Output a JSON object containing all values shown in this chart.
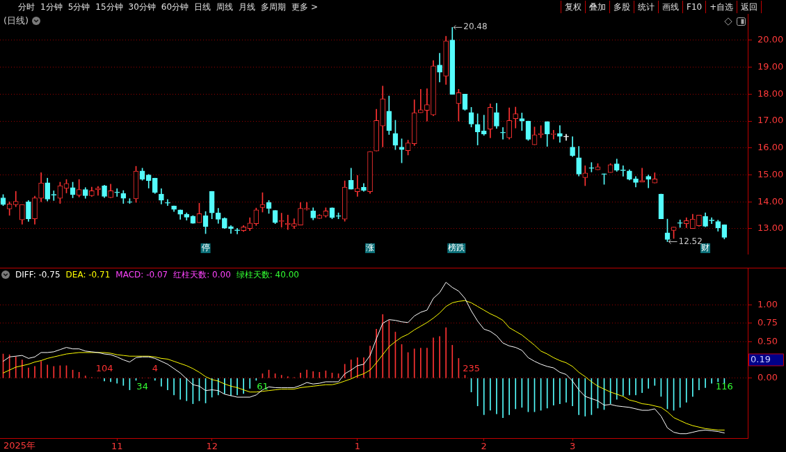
{
  "chart_data": [
    {
      "type": "other",
      "annotations": [
        "分时",
        "1分钟",
        "5分钟",
        "15分钟",
        "30分钟",
        "60分钟",
        "日线",
        "周线",
        "月线",
        "多周期",
        "更多 >"
      ]
    },
    {
      "type": "other",
      "annotations": [
        "复权",
        "叠加",
        "多股",
        "统计",
        "画线",
        "F10",
        "+自选",
        "返回"
      ]
    },
    {
      "type": "candlestick",
      "title": "(日线)",
      "tick_labels": "y",
      "grid": "y",
      "categories": [
        null,
        null,
        null,
        null,
        null,
        null,
        null,
        null,
        null,
        null,
        null,
        null,
        null,
        null,
        null,
        null,
        null,
        null,
        "11",
        null,
        null,
        null,
        null,
        null,
        null,
        null,
        null,
        null,
        null,
        null,
        null,
        null,
        null,
        "12",
        null,
        null,
        null,
        null,
        null,
        null,
        null,
        null,
        null,
        null,
        null,
        null,
        null,
        null,
        null,
        null,
        null,
        null,
        null,
        null,
        null,
        null,
        "1",
        null,
        null,
        null,
        null,
        null,
        null,
        null,
        null,
        null,
        null,
        null,
        null,
        null,
        null,
        null,
        null,
        null,
        null,
        null,
        "2",
        null,
        null,
        null,
        null,
        null,
        null,
        null,
        null,
        null,
        null,
        null,
        null,
        null,
        "3",
        null,
        null,
        null,
        null,
        null,
        null,
        null,
        null,
        null,
        null,
        null,
        null,
        null,
        null,
        null,
        null,
        null,
        null,
        null,
        null,
        null,
        null,
        null,
        null
      ],
      "ohlc": [
        [
          14.15,
          14.27,
          13.86,
          13.9
        ],
        [
          13.74,
          14.0,
          13.5,
          13.92
        ],
        [
          13.89,
          14.39,
          13.82,
          14.02
        ],
        [
          13.33,
          13.9,
          13.17,
          13.9
        ],
        [
          14.0,
          14.05,
          13.27,
          13.37
        ],
        [
          13.37,
          14.21,
          13.17,
          14.15
        ],
        [
          14.13,
          15.08,
          14.0,
          14.7
        ],
        [
          14.71,
          14.88,
          14.03,
          14.1
        ],
        [
          14.27,
          14.41,
          14.05,
          14.25
        ],
        [
          14.13,
          14.73,
          13.94,
          14.6
        ],
        [
          14.5,
          14.83,
          14.33,
          14.68
        ],
        [
          14.53,
          14.73,
          14.15,
          14.27
        ],
        [
          14.24,
          14.83,
          14.18,
          14.46
        ],
        [
          14.46,
          14.53,
          14.13,
          14.23
        ],
        [
          14.23,
          14.55,
          14.2,
          14.41
        ],
        [
          14.45,
          14.57,
          14.24,
          14.51
        ],
        [
          14.59,
          14.62,
          14.16,
          14.2
        ],
        [
          14.16,
          14.66,
          14.15,
          14.41
        ],
        [
          14.36,
          14.49,
          14.2,
          14.34
        ],
        [
          14.31,
          14.42,
          13.94,
          14.13
        ],
        [
          13.99,
          14.12,
          13.94,
          13.98
        ],
        [
          14.11,
          15.32,
          13.98,
          15.14
        ],
        [
          15.15,
          15.25,
          14.8,
          14.84
        ],
        [
          15.0,
          15.02,
          14.51,
          14.79
        ],
        [
          14.88,
          14.88,
          14.31,
          14.35
        ],
        [
          14.29,
          14.49,
          13.92,
          14.06
        ],
        [
          13.98,
          14.09,
          13.86,
          13.95
        ],
        [
          13.85,
          13.85,
          13.64,
          13.72
        ],
        [
          13.7,
          13.7,
          13.35,
          13.54
        ],
        [
          13.54,
          13.59,
          13.32,
          13.43
        ],
        [
          13.47,
          13.49,
          13.2,
          13.2
        ],
        [
          13.23,
          13.95,
          13.23,
          13.56
        ],
        [
          13.49,
          13.64,
          12.82,
          13.08
        ],
        [
          14.39,
          14.39,
          13.37,
          13.59
        ],
        [
          13.59,
          13.76,
          13.2,
          13.35
        ],
        [
          13.39,
          13.41,
          13.01,
          13.02
        ],
        [
          13.08,
          13.12,
          12.83,
          13.01
        ],
        [
          12.95,
          13.02,
          12.81,
          12.93
        ],
        [
          12.93,
          13.12,
          12.9,
          13.07
        ],
        [
          13.01,
          13.41,
          12.93,
          13.21
        ],
        [
          13.19,
          13.77,
          13.12,
          13.7
        ],
        [
          13.79,
          14.34,
          13.62,
          13.9
        ],
        [
          13.98,
          14.05,
          13.57,
          13.76
        ],
        [
          13.68,
          13.68,
          13.19,
          13.23
        ],
        [
          13.27,
          13.58,
          13.06,
          13.3
        ],
        [
          13.16,
          13.51,
          12.97,
          13.2
        ],
        [
          13.09,
          13.37,
          13.01,
          13.19
        ],
        [
          13.14,
          13.97,
          13.14,
          13.76
        ],
        [
          13.72,
          13.98,
          13.69,
          13.76
        ],
        [
          13.66,
          13.78,
          13.33,
          13.4
        ],
        [
          13.38,
          13.53,
          13.38,
          13.5
        ],
        [
          13.48,
          13.78,
          13.43,
          13.66
        ],
        [
          13.78,
          13.78,
          13.37,
          13.42
        ],
        [
          13.47,
          13.59,
          13.37,
          13.46
        ],
        [
          13.36,
          14.78,
          13.28,
          14.55
        ],
        [
          14.8,
          15.25,
          14.47,
          14.47
        ],
        [
          14.38,
          14.98,
          14.2,
          14.5
        ],
        [
          14.54,
          14.68,
          14.39,
          14.42
        ],
        [
          14.38,
          15.87,
          14.31,
          15.87
        ],
        [
          15.89,
          17.44,
          15.89,
          17.02
        ],
        [
          16.82,
          18.3,
          16.04,
          17.83
        ],
        [
          17.37,
          17.93,
          16.5,
          16.65
        ],
        [
          16.54,
          17.03,
          15.94,
          16.1
        ],
        [
          16.03,
          16.34,
          15.45,
          15.94
        ],
        [
          15.9,
          16.29,
          15.74,
          16.19
        ],
        [
          16.16,
          17.79,
          16.09,
          17.31
        ],
        [
          17.31,
          18.18,
          17.31,
          17.42
        ],
        [
          17.4,
          18.2,
          17.0,
          17.61
        ],
        [
          17.23,
          19.25,
          17.2,
          19.05
        ],
        [
          19.08,
          19.52,
          18.45,
          18.82
        ],
        [
          18.67,
          20.15,
          18.36,
          19.98
        ],
        [
          20.01,
          20.48,
          17.99,
          17.99
        ],
        [
          17.65,
          18.18,
          17.0,
          18.05
        ],
        [
          18.0,
          18.0,
          17.4,
          17.43
        ],
        [
          17.32,
          17.51,
          16.78,
          16.89
        ],
        [
          16.88,
          17.27,
          16.11,
          16.6
        ],
        [
          16.63,
          17.22,
          16.47,
          16.52
        ],
        [
          16.7,
          17.64,
          16.38,
          17.51
        ],
        [
          17.32,
          17.66,
          16.73,
          16.81
        ],
        [
          16.58,
          16.76,
          16.33,
          16.56
        ],
        [
          16.38,
          17.49,
          16.33,
          17.02
        ],
        [
          17.09,
          17.52,
          16.74,
          17.27
        ],
        [
          17.09,
          17.3,
          16.65,
          17.0
        ],
        [
          17.0,
          17.0,
          16.28,
          16.32
        ],
        [
          16.12,
          16.78,
          16.12,
          16.49
        ],
        [
          16.49,
          16.83,
          16.38,
          16.54
        ],
        [
          16.98,
          16.98,
          16.06,
          16.52
        ],
        [
          16.5,
          16.66,
          16.33,
          16.53
        ],
        [
          16.54,
          16.83,
          16.21,
          16.43
        ],
        [
          16.41,
          16.51,
          16.28,
          16.41
        ],
        [
          16.03,
          16.42,
          15.68,
          15.72
        ],
        [
          15.64,
          16.06,
          14.96,
          15.03
        ],
        [
          14.9,
          15.34,
          14.6,
          15.07
        ],
        [
          15.27,
          15.46,
          15.11,
          15.24
        ],
        [
          15.19,
          15.42,
          15.19,
          15.3
        ],
        [
          15.04,
          15.04,
          14.65,
          15.02
        ],
        [
          15.09,
          15.42,
          15.09,
          15.38
        ],
        [
          15.41,
          15.59,
          15.13,
          15.18
        ],
        [
          15.17,
          15.34,
          14.95,
          15.16
        ],
        [
          15.15,
          15.19,
          14.81,
          14.84
        ],
        [
          14.86,
          14.94,
          14.55,
          14.72
        ],
        [
          14.74,
          15.25,
          14.74,
          14.79
        ],
        [
          14.95,
          15.0,
          14.52,
          14.84
        ],
        [
          14.7,
          15.08,
          14.7,
          14.85
        ],
        [
          14.29,
          14.29,
          13.37,
          13.37
        ],
        [
          12.85,
          13.36,
          12.52,
          12.6
        ],
        [
          12.94,
          13.06,
          12.64,
          13.06
        ],
        [
          13.22,
          13.33,
          13.05,
          13.2
        ],
        [
          13.19,
          13.41,
          13.04,
          13.3
        ],
        [
          13.01,
          13.54,
          13.01,
          13.36
        ],
        [
          13.11,
          13.51,
          13.09,
          13.51
        ],
        [
          13.46,
          13.59,
          13.07,
          13.09
        ],
        [
          13.32,
          13.41,
          13.19,
          13.3
        ],
        [
          13.27,
          13.32,
          12.91,
          13.03
        ],
        [
          13.15,
          13.15,
          12.62,
          12.68
        ]
      ],
      "colors": [
        "#54fcfc",
        "#ff3232",
        "#ff3232",
        "#ff3232",
        "#54fcfc",
        "#ff3232",
        "#ff3232",
        "#54fcfc",
        "#54fcfc",
        "#ff3232",
        "#ff3232",
        "#54fcfc",
        "#ff3232",
        "#54fcfc",
        "#ff3232",
        "#ff3232",
        "#54fcfc",
        "#ff3232",
        "#54fcfc",
        "#54fcfc",
        "#54fcfc",
        "#ff3232",
        "#54fcfc",
        "#54fcfc",
        "#54fcfc",
        "#54fcfc",
        "#54fcfc",
        "#54fcfc",
        "#54fcfc",
        "#54fcfc",
        "#54fcfc",
        "#ff3232",
        "#54fcfc",
        "#54fcfc",
        "#54fcfc",
        "#54fcfc",
        "#54fcfc",
        "#54fcfc",
        "#ff3232",
        "#ff3232",
        "#ff3232",
        "#ff3232",
        "#54fcfc",
        "#54fcfc",
        "#ff3232",
        "#ff3232",
        "#ff3232",
        "#ff3232",
        "#ff3232",
        "#54fcfc",
        "#ff3232",
        "#ff3232",
        "#54fcfc",
        "#54fcfc",
        "#ff3232",
        "#54fcfc",
        "#ff3232",
        "#54fcfc",
        "#ff3232",
        "#ff3232",
        "#ff3232",
        "#54fcfc",
        "#54fcfc",
        "#54fcfc",
        "#ff3232",
        "#ff3232",
        "#ff3232",
        "#ff3232",
        "#ff3232",
        "#54fcfc",
        "#ff3232",
        "#54fcfc",
        "#ff3232",
        "#54fcfc",
        "#54fcfc",
        "#54fcfc",
        "#54fcfc",
        "#ff3232",
        "#54fcfc",
        "#54fcfc",
        "#ff3232",
        "#ff3232",
        "#54fcfc",
        "#54fcfc",
        "#ff3232",
        "#ff3232",
        "#54fcfc",
        "#ff3232",
        "#54fcfc",
        "#ffffff",
        "#54fcfc",
        "#54fcfc",
        "#ff3232",
        "#54fcfc",
        "#ff3232",
        "#54fcfc",
        "#ff3232",
        "#54fcfc",
        "#54fcfc",
        "#54fcfc",
        "#54fcfc",
        "#ff3232",
        "#54fcfc",
        "#ff3232",
        "#54fcfc",
        "#54fcfc",
        "#ff3232",
        "#54fcfc",
        "#ff3232",
        "#ff3232",
        "#ff3232",
        "#54fcfc",
        "#54fcfc",
        "#54fcfc",
        "#54fcfc"
      ],
      "value_labels": [
        null,
        null,
        null,
        null,
        null,
        null,
        null,
        null,
        null,
        null,
        null,
        null,
        null,
        null,
        null,
        null,
        null,
        null,
        null,
        null,
        null,
        null,
        null,
        null,
        null,
        null,
        null,
        null,
        null,
        null,
        null,
        null,
        "停",
        null,
        null,
        null,
        null,
        null,
        null,
        null,
        null,
        null,
        null,
        null,
        null,
        null,
        null,
        null,
        null,
        null,
        null,
        null,
        null,
        null,
        null,
        null,
        null,
        null,
        "涨",
        null,
        null,
        null,
        null,
        null,
        null,
        null,
        null,
        null,
        null,
        null,
        null,
        "榜跌",
        null,
        null,
        null,
        null,
        null,
        null,
        null,
        null,
        null,
        null,
        null,
        null,
        null,
        null,
        null,
        null,
        null,
        null,
        null,
        null,
        null,
        null,
        null,
        null,
        null,
        null,
        null,
        null,
        null,
        null,
        null,
        null,
        null,
        null,
        null,
        null,
        null,
        null,
        null,
        "财",
        null,
        null,
        null
      ],
      "ylim": [
        12.07,
        20.98
      ],
      "yticks": [
        {
          "value": 13,
          "label": "13.00"
        },
        {
          "value": 14,
          "label": "14.00"
        },
        {
          "value": 15,
          "label": "15.00"
        },
        {
          "value": 16,
          "label": "16.00"
        },
        {
          "value": 17,
          "label": "17.00"
        },
        {
          "value": 18,
          "label": "18.00"
        },
        {
          "value": 19,
          "label": "19.00"
        },
        {
          "value": 20,
          "label": "20.00"
        }
      ],
      "annotations": [
        "20.48",
        "12.52"
      ]
    },
    {
      "type": "bar",
      "grid": "y",
      "legend": "top left",
      "xlabel": "2025年",
      "categories": [
        null,
        null,
        null,
        null,
        null,
        null,
        null,
        null,
        null,
        null,
        null,
        null,
        null,
        null,
        null,
        null,
        null,
        null,
        "11",
        null,
        null,
        null,
        null,
        null,
        null,
        null,
        null,
        null,
        null,
        null,
        null,
        null,
        null,
        "12",
        null,
        null,
        null,
        null,
        null,
        null,
        null,
        null,
        null,
        null,
        null,
        null,
        null,
        null,
        null,
        null,
        null,
        null,
        null,
        null,
        null,
        null,
        "1",
        null,
        null,
        null,
        null,
        null,
        null,
        null,
        null,
        null,
        null,
        null,
        null,
        null,
        null,
        null,
        null,
        null,
        null,
        null,
        "2",
        null,
        null,
        null,
        null,
        null,
        null,
        null,
        null,
        null,
        null,
        null,
        null,
        null,
        "3",
        null,
        null,
        null,
        null,
        null,
        null,
        null,
        null,
        null,
        null,
        null,
        null,
        null,
        null,
        null,
        null,
        null,
        null,
        null,
        null,
        null,
        null,
        null,
        null
      ],
      "series": [
        {
          "name": "DIFF: -0.75",
          "type": "line",
          "color": "#ffffff",
          "values": [
            0.23,
            0.29,
            0.3,
            0.31,
            0.27,
            0.29,
            0.35,
            0.35,
            0.36,
            0.39,
            0.42,
            0.4,
            0.4,
            0.37,
            0.36,
            0.35,
            0.33,
            0.32,
            0.29,
            0.25,
            0.22,
            0.28,
            0.29,
            0.29,
            0.27,
            0.23,
            0.19,
            0.13,
            0.07,
            -0.01,
            -0.09,
            -0.11,
            -0.17,
            -0.16,
            -0.17,
            -0.22,
            -0.24,
            -0.26,
            -0.26,
            -0.26,
            -0.23,
            -0.16,
            -0.12,
            -0.13,
            -0.13,
            -0.13,
            -0.13,
            -0.1,
            -0.06,
            -0.08,
            -0.07,
            -0.05,
            -0.05,
            -0.05,
            0.06,
            0.11,
            0.17,
            0.19,
            0.31,
            0.54,
            0.75,
            0.8,
            0.79,
            0.77,
            0.76,
            0.85,
            0.9,
            0.93,
            1.09,
            1.17,
            1.31,
            1.24,
            1.19,
            1.09,
            0.92,
            0.78,
            0.67,
            0.64,
            0.58,
            0.48,
            0.44,
            0.42,
            0.38,
            0.28,
            0.23,
            0.19,
            0.16,
            0.14,
            0.08,
            0.05,
            -0.04,
            -0.16,
            -0.25,
            -0.28,
            -0.31,
            -0.37,
            -0.36,
            -0.38,
            -0.39,
            -0.4,
            -0.42,
            -0.44,
            -0.44,
            -0.42,
            -0.52,
            -0.68,
            -0.74,
            -0.76,
            -0.76,
            -0.74,
            -0.72,
            -0.71,
            -0.72,
            -0.73,
            -0.75
          ]
        },
        {
          "name": "DEA: -0.71",
          "type": "line",
          "color": "#ffff00",
          "values": [
            0.07,
            0.11,
            0.15,
            0.17,
            0.19,
            0.22,
            0.24,
            0.27,
            0.29,
            0.31,
            0.33,
            0.34,
            0.35,
            0.35,
            0.35,
            0.35,
            0.35,
            0.34,
            0.32,
            0.31,
            0.3,
            0.3,
            0.3,
            0.3,
            0.29,
            0.27,
            0.26,
            0.23,
            0.2,
            0.17,
            0.13,
            0.08,
            0.02,
            -0.02,
            -0.04,
            -0.08,
            -0.11,
            -0.13,
            -0.16,
            -0.19,
            -0.19,
            -0.18,
            -0.17,
            -0.16,
            -0.15,
            -0.15,
            -0.15,
            -0.13,
            -0.12,
            -0.11,
            -0.1,
            -0.09,
            -0.09,
            -0.07,
            -0.04,
            -0.01,
            0.03,
            0.06,
            0.11,
            0.21,
            0.32,
            0.43,
            0.5,
            0.56,
            0.6,
            0.66,
            0.71,
            0.76,
            0.82,
            0.89,
            0.98,
            1.03,
            1.05,
            1.06,
            1.03,
            0.98,
            0.93,
            0.88,
            0.84,
            0.79,
            0.69,
            0.64,
            0.59,
            0.52,
            0.45,
            0.37,
            0.33,
            0.28,
            0.24,
            0.21,
            0.16,
            0.08,
            0.02,
            -0.05,
            -0.11,
            -0.15,
            -0.19,
            -0.22,
            -0.25,
            -0.3,
            -0.32,
            -0.35,
            -0.36,
            -0.38,
            -0.4,
            -0.46,
            -0.54,
            -0.58,
            -0.62,
            -0.65,
            -0.67,
            -0.69,
            -0.7,
            -0.71,
            -0.71
          ]
        },
        {
          "values": [
            0.33,
            0.32,
            0.29,
            0.25,
            0.14,
            0.16,
            0.23,
            0.18,
            0.16,
            0.17,
            0.17,
            0.11,
            0.08,
            0.03,
            0.01,
            0.0,
            -0.04,
            -0.05,
            -0.07,
            -0.1,
            -0.16,
            -0.03,
            0.0,
            0.0,
            -0.03,
            -0.11,
            -0.16,
            -0.23,
            -0.29,
            -0.31,
            -0.35,
            -0.31,
            -0.34,
            -0.26,
            -0.23,
            -0.21,
            -0.24,
            -0.23,
            -0.21,
            -0.14,
            -0.03,
            0.06,
            0.11,
            0.06,
            0.04,
            0.02,
            0.01,
            0.07,
            0.11,
            0.09,
            0.08,
            0.1,
            0.07,
            0.06,
            0.19,
            0.25,
            0.28,
            0.28,
            0.44,
            0.67,
            0.87,
            0.79,
            0.63,
            0.46,
            0.35,
            0.4,
            0.41,
            0.41,
            0.55,
            0.57,
            0.69,
            0.45,
            0.27,
            0.04,
            -0.19,
            -0.38,
            -0.5,
            -0.44,
            -0.49,
            -0.54,
            -0.5,
            -0.42,
            -0.4,
            -0.46,
            -0.46,
            -0.44,
            -0.41,
            -0.37,
            -0.35,
            -0.33,
            -0.38,
            -0.5,
            -0.52,
            -0.5,
            -0.41,
            -0.43,
            -0.35,
            -0.29,
            -0.24,
            -0.23,
            -0.23,
            -0.2,
            -0.14,
            -0.1,
            -0.25,
            -0.42,
            -0.44,
            -0.4,
            -0.33,
            -0.25,
            -0.16,
            -0.13,
            -0.07,
            -0.05,
            -0.07
          ],
          "colors": [
            "#ff3232",
            "#ff3232",
            "#ff3232",
            "#ff3232",
            "#ff3232",
            "#ff3232",
            "#ff3232",
            "#ff3232",
            "#ff3232",
            "#ff3232",
            "#ff3232",
            "#ff3232",
            "#ff3232",
            "#ff3232",
            "#ff3232",
            "#ff3232",
            "#54fcfc",
            "#54fcfc",
            "#54fcfc",
            "#54fcfc",
            "#54fcfc",
            "#54fcfc",
            "#ff3232",
            "#ff3232",
            "#54fcfc",
            "#54fcfc",
            "#54fcfc",
            "#54fcfc",
            "#54fcfc",
            "#54fcfc",
            "#54fcfc",
            "#54fcfc",
            "#54fcfc",
            "#54fcfc",
            "#54fcfc",
            "#54fcfc",
            "#54fcfc",
            "#54fcfc",
            "#54fcfc",
            "#54fcfc",
            "#54fcfc",
            "#ff3232",
            "#ff3232",
            "#ff3232",
            "#ff3232",
            "#ff3232",
            "#ff3232",
            "#ff3232",
            "#ff3232",
            "#ff3232",
            "#ff3232",
            "#ff3232",
            "#ff3232",
            "#ff3232",
            "#ff3232",
            "#ff3232",
            "#ff3232",
            "#ff3232",
            "#ff3232",
            "#ff3232",
            "#ff3232",
            "#ff3232",
            "#ff3232",
            "#ff3232",
            "#ff3232",
            "#ff3232",
            "#ff3232",
            "#ff3232",
            "#ff3232",
            "#ff3232",
            "#ff3232",
            "#ff3232",
            "#ff3232",
            "#ff3232",
            "#54fcfc",
            "#54fcfc",
            "#54fcfc",
            "#54fcfc",
            "#54fcfc",
            "#54fcfc",
            "#54fcfc",
            "#54fcfc",
            "#54fcfc",
            "#54fcfc",
            "#54fcfc",
            "#54fcfc",
            "#54fcfc",
            "#54fcfc",
            "#54fcfc",
            "#54fcfc",
            "#54fcfc",
            "#54fcfc",
            "#54fcfc",
            "#54fcfc",
            "#54fcfc",
            "#54fcfc",
            "#54fcfc",
            "#54fcfc",
            "#54fcfc",
            "#54fcfc",
            "#54fcfc",
            "#54fcfc",
            "#54fcfc",
            "#54fcfc",
            "#54fcfc",
            "#54fcfc",
            "#54fcfc",
            "#54fcfc",
            "#54fcfc",
            "#54fcfc",
            "#54fcfc",
            "#54fcfc",
            "#54fcfc",
            "#54fcfc",
            "#54fcfc"
          ]
        }
      ],
      "ylim": [
        -0.82,
        1.5
      ],
      "yticks": [
        {
          "value": 0,
          "label": "0.00"
        },
        {
          "value": 0.5,
          "label": "0.50"
        },
        {
          "value": 0.75,
          "label": "0.75"
        },
        {
          "value": 1,
          "label": "1.00"
        }
      ],
      "annotations": [
        "MACD: -0.07",
        "红柱天数: 0.00",
        "绿柱天数: 40.00",
        "104",
        "34",
        "4",
        "61",
        "235",
        "116",
        "0.19"
      ]
    }
  ]
}
